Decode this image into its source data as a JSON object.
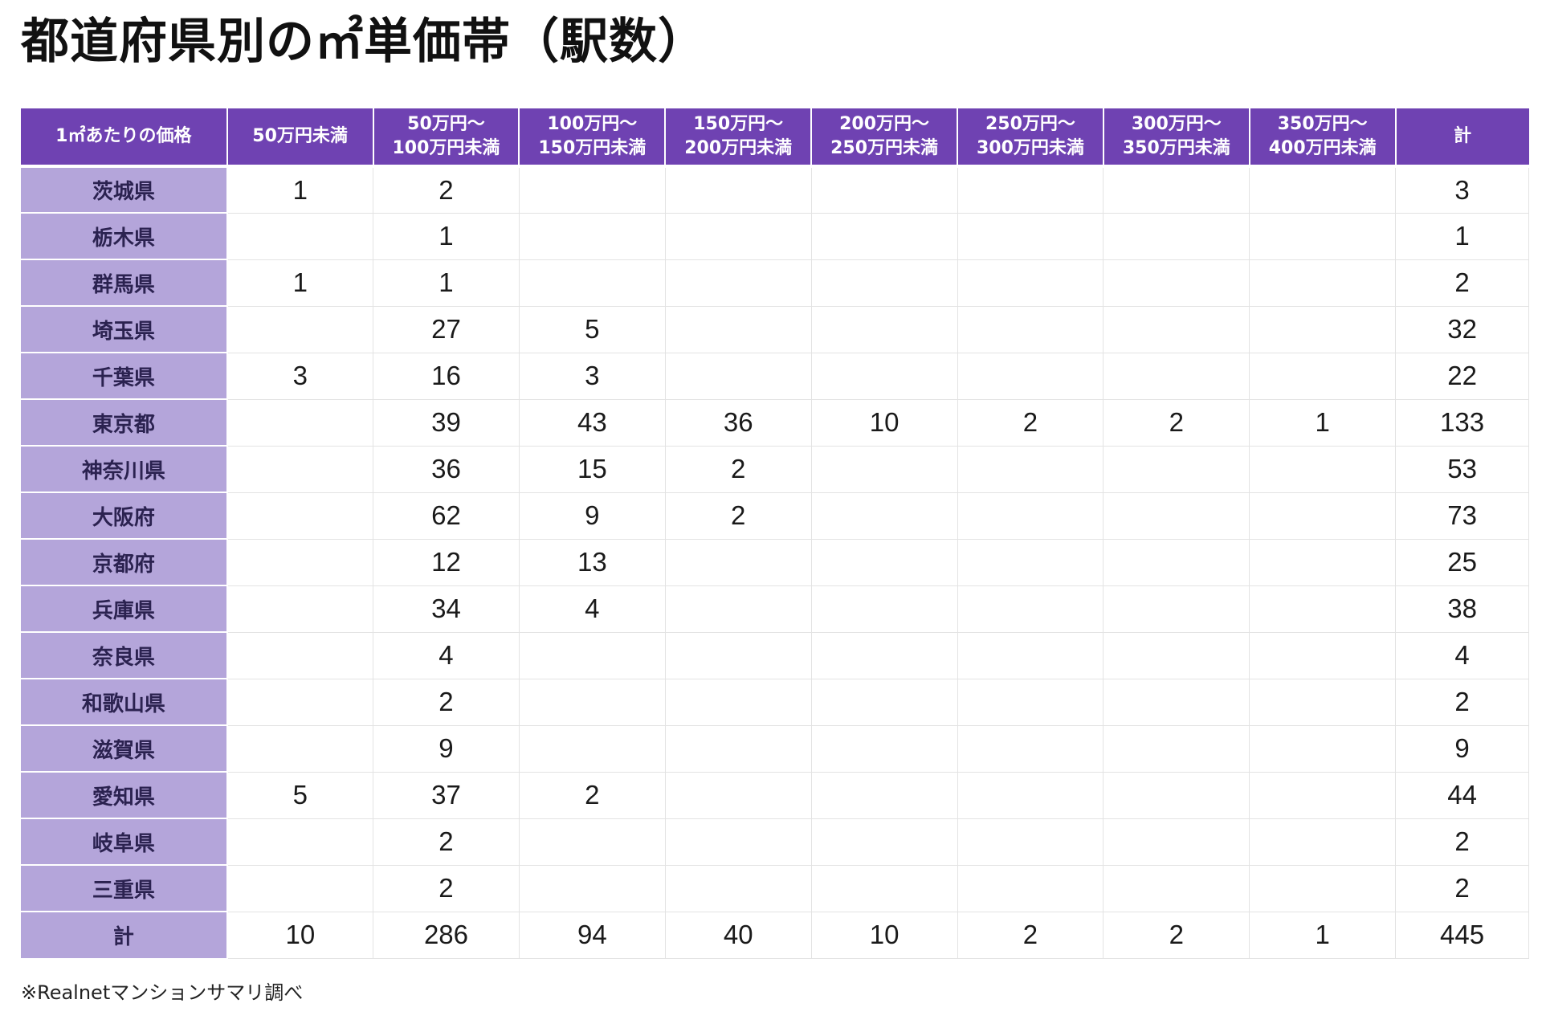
{
  "title": "都道府県別の㎡単価帯（駅数）",
  "footnote": "※Realnetマンションサマリ調べ",
  "chart_data": {
    "type": "table",
    "title": "都道府県別の㎡単価帯（駅数）",
    "row_header": "1㎡あたりの価格",
    "columns": [
      [
        "50万円未満"
      ],
      [
        "50万円〜",
        "100万円未満"
      ],
      [
        "100万円〜",
        "150万円未満"
      ],
      [
        "150万円〜",
        "200万円未満"
      ],
      [
        "200万円〜",
        "250万円未満"
      ],
      [
        "250万円〜",
        "300万円未満"
      ],
      [
        "300万円〜",
        "350万円未満"
      ],
      [
        "350万円〜",
        "400万円未満"
      ],
      [
        "計"
      ]
    ],
    "rows": [
      {
        "label": "茨城県",
        "values": [
          "1",
          "2",
          "",
          "",
          "",
          "",
          "",
          "",
          "3"
        ]
      },
      {
        "label": "栃木県",
        "values": [
          "",
          "1",
          "",
          "",
          "",
          "",
          "",
          "",
          "1"
        ]
      },
      {
        "label": "群馬県",
        "values": [
          "1",
          "1",
          "",
          "",
          "",
          "",
          "",
          "",
          "2"
        ]
      },
      {
        "label": "埼玉県",
        "values": [
          "",
          "27",
          "5",
          "",
          "",
          "",
          "",
          "",
          "32"
        ]
      },
      {
        "label": "千葉県",
        "values": [
          "3",
          "16",
          "3",
          "",
          "",
          "",
          "",
          "",
          "22"
        ]
      },
      {
        "label": "東京都",
        "values": [
          "",
          "39",
          "43",
          "36",
          "10",
          "2",
          "2",
          "1",
          "133"
        ]
      },
      {
        "label": "神奈川県",
        "values": [
          "",
          "36",
          "15",
          "2",
          "",
          "",
          "",
          "",
          "53"
        ]
      },
      {
        "label": "大阪府",
        "values": [
          "",
          "62",
          "9",
          "2",
          "",
          "",
          "",
          "",
          "73"
        ]
      },
      {
        "label": "京都府",
        "values": [
          "",
          "12",
          "13",
          "",
          "",
          "",
          "",
          "",
          "25"
        ]
      },
      {
        "label": "兵庫県",
        "values": [
          "",
          "34",
          "4",
          "",
          "",
          "",
          "",
          "",
          "38"
        ]
      },
      {
        "label": "奈良県",
        "values": [
          "",
          "4",
          "",
          "",
          "",
          "",
          "",
          "",
          "4"
        ]
      },
      {
        "label": "和歌山県",
        "values": [
          "",
          "2",
          "",
          "",
          "",
          "",
          "",
          "",
          "2"
        ]
      },
      {
        "label": "滋賀県",
        "values": [
          "",
          "9",
          "",
          "",
          "",
          "",
          "",
          "",
          "9"
        ]
      },
      {
        "label": "愛知県",
        "values": [
          "5",
          "37",
          "2",
          "",
          "",
          "",
          "",
          "",
          "44"
        ]
      },
      {
        "label": "岐阜県",
        "values": [
          "",
          "2",
          "",
          "",
          "",
          "",
          "",
          "",
          "2"
        ]
      },
      {
        "label": "三重県",
        "values": [
          "",
          "2",
          "",
          "",
          "",
          "",
          "",
          "",
          "2"
        ]
      },
      {
        "label": "計",
        "values": [
          "10",
          "286",
          "94",
          "40",
          "10",
          "2",
          "2",
          "1",
          "445"
        ]
      }
    ]
  },
  "colors": {
    "header_bg": "#6f42b2",
    "row_label_bg": "#b4a5da",
    "grid_line": "#e3e3e3"
  }
}
